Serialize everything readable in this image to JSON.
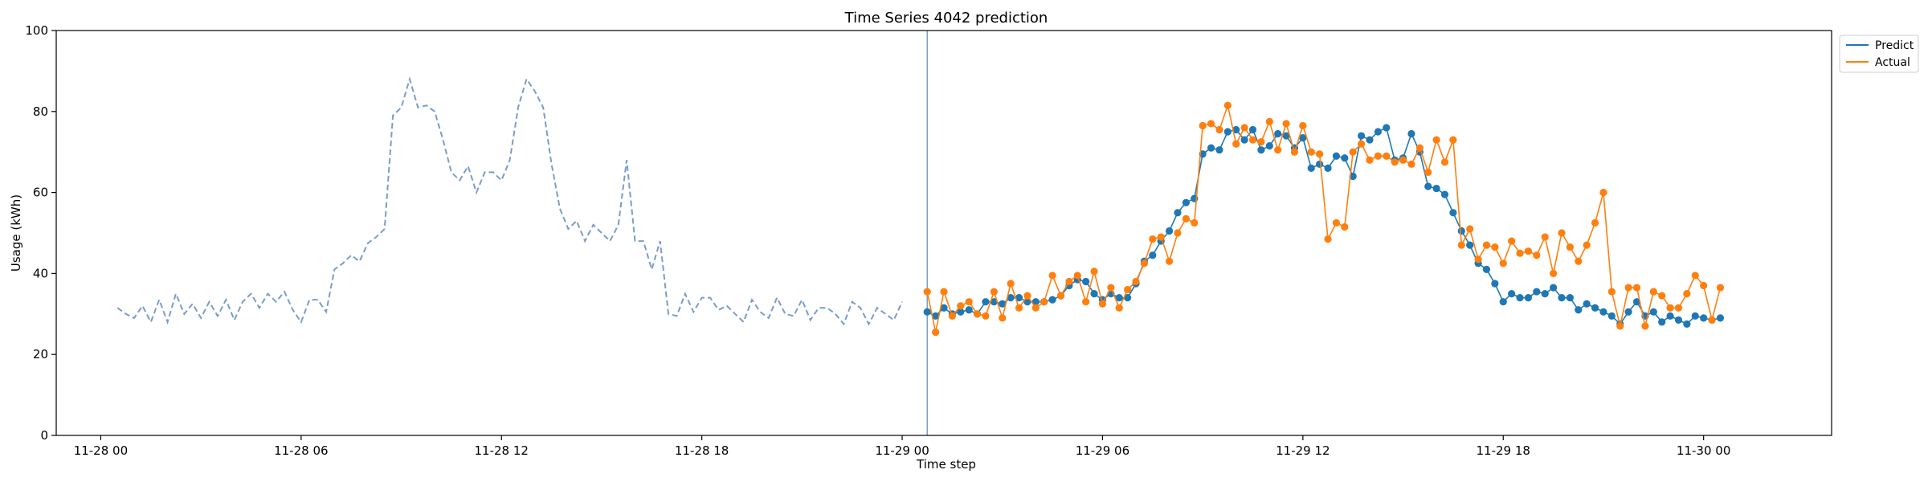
{
  "chart_data": {
    "type": "line",
    "title": "Time Series 4042 prediction",
    "xlabel": "Time step",
    "ylabel": "Usage (kWh)",
    "ylim": [
      0,
      100
    ],
    "xlim": [
      "2023-11-27T22:40",
      "2023-11-30T03:50"
    ],
    "yticks": [
      0,
      20,
      40,
      60,
      80,
      100
    ],
    "xticks": [
      "11-28 00",
      "11-28 06",
      "11-28 12",
      "11-28 18",
      "11-29 00",
      "11-29 06",
      "11-29 12",
      "11-29 18",
      "11-30 00"
    ],
    "xtick_times": [
      "2023-11-28T00:00",
      "2023-11-28T06:00",
      "2023-11-28T12:00",
      "2023-11-28T18:00",
      "2023-11-29T00:00",
      "2023-11-29T06:00",
      "2023-11-29T12:00",
      "2023-11-29T18:00",
      "2023-11-30T00:00"
    ],
    "grid": false,
    "legend_position": "outside-top-right",
    "forecast_start": "2023-11-29T00:45",
    "series": [
      {
        "name": "",
        "style": "dashed",
        "color": "#7b9cc9",
        "start": "2023-11-28T00:30",
        "interval_minutes": 15,
        "values": [
          31.5,
          30,
          29,
          32,
          28,
          33.5,
          28,
          35,
          30,
          32.5,
          29,
          33,
          29.5,
          33.5,
          28.5,
          33,
          35,
          31.5,
          35,
          33,
          35.5,
          31,
          28,
          33.5,
          33.5,
          30.5,
          41,
          42.5,
          44.5,
          43,
          47.5,
          49,
          51,
          79,
          81,
          88,
          81,
          81.5,
          80,
          73,
          65,
          63,
          66.5,
          60,
          65,
          65,
          63,
          68,
          81,
          88,
          85,
          81,
          67,
          56,
          51,
          53,
          48,
          52,
          50,
          48,
          52,
          68,
          48,
          48,
          41,
          48,
          30,
          29.5,
          35,
          30.5,
          34,
          34,
          31,
          32,
          30,
          28,
          33.5,
          30.5,
          29,
          34,
          30,
          29.5,
          33.5,
          28.5,
          31.5,
          31.5,
          30,
          27.5,
          33,
          31.5,
          27.5,
          31.5,
          30,
          28.5,
          33
        ]
      },
      {
        "name": "Predict",
        "style": "line-markers",
        "color": "#1f77b4",
        "start": "2023-11-29T00:45",
        "interval_minutes": 15,
        "values": [
          30.5,
          29.5,
          31.5,
          30,
          30.5,
          31,
          30,
          33,
          33,
          32.5,
          34,
          34,
          33,
          33,
          33,
          33.5,
          34.5,
          37,
          38.5,
          38,
          35,
          33.5,
          35,
          34,
          34,
          37.5,
          43,
          44.5,
          48,
          50.5,
          55,
          57.5,
          58.5,
          69.5,
          71,
          70.5,
          75,
          75.5,
          73,
          75.5,
          70.5,
          71.5,
          74.5,
          74,
          71,
          73.5,
          66,
          67,
          66,
          69,
          68.5,
          64,
          74,
          73,
          75,
          76,
          68,
          68.5,
          74.5,
          70,
          61.5,
          61,
          59.5,
          55,
          50.5,
          47,
          42.5,
          41,
          37.5,
          33,
          35,
          34,
          34,
          35.5,
          35,
          36.5,
          34,
          34,
          31,
          32.5,
          31.5,
          30.5,
          29.5,
          27.5,
          30.5,
          33,
          29.5,
          30.5,
          28,
          29.5,
          28.5,
          27.5,
          29.5,
          29,
          28.5,
          29
        ]
      },
      {
        "name": "Actual",
        "style": "line-markers",
        "color": "#ff7f0e",
        "start": "2023-11-29T00:45",
        "interval_minutes": 15,
        "values": [
          35.5,
          25.5,
          35.5,
          29.5,
          32,
          33,
          30,
          29.5,
          35.5,
          29,
          37.5,
          31.5,
          34.5,
          31.5,
          33,
          39.5,
          34.5,
          38,
          39.5,
          33,
          40.5,
          32.5,
          36.5,
          31.5,
          36,
          38,
          42.5,
          48.5,
          49,
          43,
          50,
          53.5,
          52.5,
          76.5,
          77,
          75.5,
          81.5,
          72,
          76,
          73,
          72.5,
          77.5,
          70.5,
          77,
          70,
          76.5,
          70,
          69.5,
          48.5,
          52.5,
          51.5,
          70,
          72,
          68,
          69,
          69,
          67.5,
          68,
          67,
          71,
          65,
          73,
          67.5,
          73,
          47,
          51,
          43.5,
          47,
          46.5,
          42.5,
          48,
          45,
          45.5,
          44.5,
          49,
          40,
          50,
          46.5,
          43,
          47,
          52.5,
          60,
          35.5,
          27,
          36.5,
          36.5,
          27,
          35.5,
          34.5,
          31.5,
          31.5,
          35,
          39.5,
          37,
          28.5,
          36.5
        ]
      }
    ]
  }
}
